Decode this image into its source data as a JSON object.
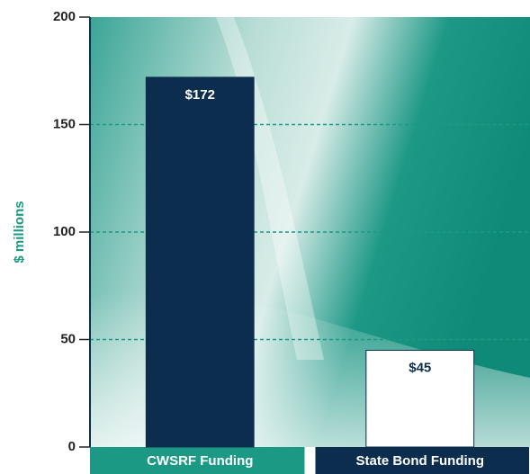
{
  "chart_data": {
    "type": "bar",
    "y_label": "$ millions",
    "categories": [
      "CWSRF Funding",
      "State Bond Funding"
    ],
    "values": [
      172,
      45
    ],
    "value_labels": [
      "$172",
      "$45"
    ],
    "colors": [
      "#0c2d4e",
      "#ffffff"
    ],
    "category_colors": [
      "#1b9984",
      "#0c2d4e"
    ],
    "ylim": [
      0,
      200
    ],
    "yticks": [
      0,
      50,
      100,
      150,
      200
    ],
    "grid": true
  }
}
